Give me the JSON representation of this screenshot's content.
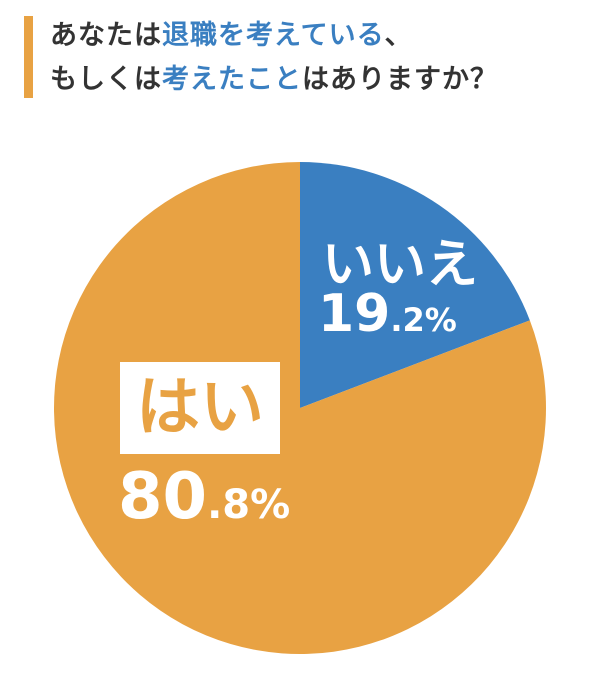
{
  "title": {
    "line1": [
      {
        "text": "あなたは",
        "highlight": false
      },
      {
        "text": "退職を考えている",
        "highlight": true
      },
      {
        "text": "、",
        "highlight": false
      }
    ],
    "line2": [
      {
        "text": "もしくは",
        "highlight": false
      },
      {
        "text": "考えたこと",
        "highlight": true
      },
      {
        "text": "はありますか？",
        "highlight": false
      }
    ]
  },
  "colors": {
    "orange": "#E8A243",
    "blue": "#3A7FC1",
    "text": "#333333",
    "bar": "#E8A243"
  },
  "chart_data": {
    "type": "pie",
    "categories": [
      "いいえ",
      "はい"
    ],
    "values": [
      19.2,
      80.8
    ],
    "slice_colors": [
      "#3A7FC1",
      "#E8A243"
    ],
    "data_labels": [
      {
        "category": "いいえ",
        "pct_int": "19",
        "pct_dec": ".2%"
      },
      {
        "category": "はい",
        "pct_int": "80",
        "pct_dec": ".8%"
      }
    ],
    "start_angle": "top (12 o'clock)",
    "direction": "clockwise"
  }
}
